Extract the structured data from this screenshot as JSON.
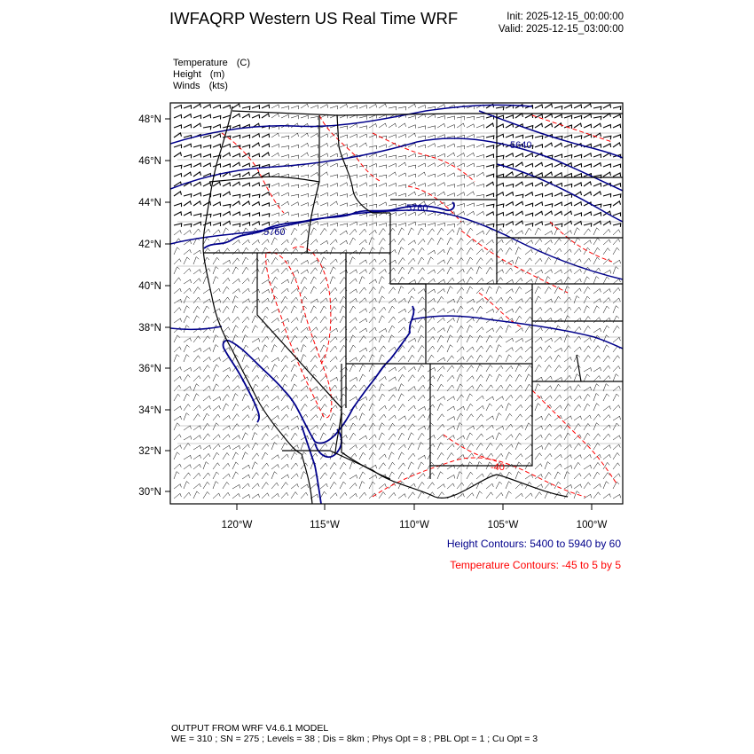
{
  "header": {
    "title": "IWFAQRP Western US Real Time WRF",
    "init_text": "Init: 2025-12-15_00:00:00",
    "valid_text": "Valid: 2025-12-15_03:00:00"
  },
  "fields": [
    {
      "name": "Temperature",
      "unit": "(C)"
    },
    {
      "name": "Height",
      "unit": "(m)"
    },
    {
      "name": "Winds",
      "unit": "(kts)"
    }
  ],
  "map": {
    "lat_labels": [
      "48°N",
      "46°N",
      "44°N",
      "42°N",
      "40°N",
      "38°N",
      "36°N",
      "34°N",
      "32°N",
      "30°N"
    ],
    "lon_labels": [
      "120°W",
      "115°W",
      "110°W",
      "105°W",
      "100°W"
    ],
    "contour_labels": {
      "height": [
        "5640",
        "5760",
        "5760"
      ],
      "temperature": [
        "-40"
      ]
    },
    "colors": {
      "height_contour": "#00008b",
      "temperature_contour": "#ff0000",
      "boundaries": "#000000",
      "wind_barbs": "#000000"
    }
  },
  "legend": {
    "height_contours": "Height Contours: 5400 to 5940 by 60",
    "temperature_contours": "Temperature Contours: -45 to 5 by 5"
  },
  "footer": {
    "line1": "OUTPUT FROM WRF V4.6.1 MODEL",
    "line2": "WE = 310 ; SN = 275 ; Levels = 38 ; Dis = 8km ; Phys Opt = 8 ; PBL Opt = 1 ; Cu Opt = 3"
  }
}
